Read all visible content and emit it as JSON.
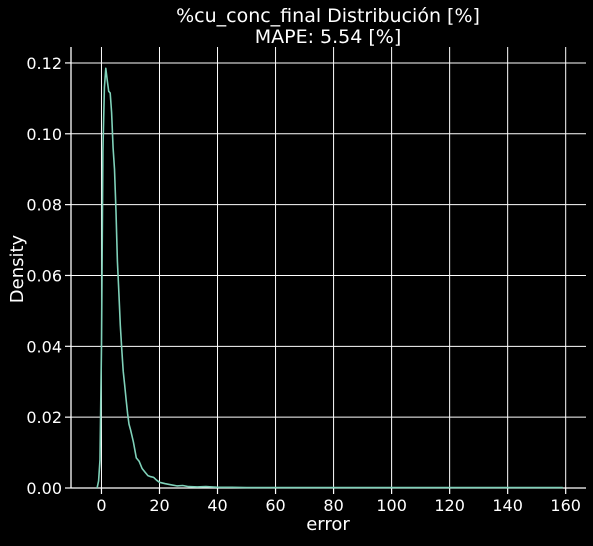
{
  "chart_data": {
    "type": "line",
    "title": "%cu_conc_final Distribución [%]",
    "subtitle": "MAPE: 5.54 [%]",
    "xlabel": "error",
    "ylabel": "Density",
    "xlim": [
      -10.5,
      167
    ],
    "ylim": [
      0,
      0.1245
    ],
    "xticks": [
      0,
      20,
      40,
      60,
      80,
      100,
      120,
      140,
      160
    ],
    "yticks": [
      0.0,
      0.02,
      0.04,
      0.06,
      0.08,
      0.1,
      0.12
    ],
    "xtick_labels": [
      "0",
      "20",
      "40",
      "60",
      "80",
      "100",
      "120",
      "140",
      "160"
    ],
    "ytick_labels": [
      "0.00",
      "0.02",
      "0.04",
      "0.06",
      "0.08",
      "0.10",
      "0.12"
    ],
    "grid": true,
    "background_color": "#000000",
    "text_color": "#ffffff",
    "grid_color": "#ffffff",
    "series": [
      {
        "color": "#7fd1b9",
        "x": [
          -1.5,
          -1.0,
          -0.5,
          0.0,
          0.5,
          1.0,
          1.5,
          2.0,
          2.5,
          3.0,
          3.5,
          4.0,
          4.5,
          5.0,
          5.5,
          6.0,
          6.5,
          7.0,
          7.5,
          8.0,
          8.5,
          9.0,
          9.5,
          10.0,
          11.0,
          12.0,
          13.0,
          14.0,
          15.0,
          16.0,
          17.0,
          18.0,
          19.0,
          20.0,
          22.0,
          24.0,
          26.0,
          28.0,
          30.0,
          33.0,
          36.0,
          40.0,
          45.0,
          50.0,
          60.0,
          80.0,
          100.0,
          120.0,
          140.0,
          159.0
        ],
        "values": [
          0.0,
          0.002,
          0.008,
          0.04,
          0.095,
          0.113,
          0.1185,
          0.115,
          0.112,
          0.1115,
          0.106,
          0.096,
          0.09,
          0.078,
          0.064,
          0.055,
          0.046,
          0.039,
          0.033,
          0.029,
          0.025,
          0.021,
          0.018,
          0.0165,
          0.013,
          0.0085,
          0.0075,
          0.0055,
          0.0045,
          0.0035,
          0.0032,
          0.003,
          0.0022,
          0.0016,
          0.0012,
          0.0009,
          0.0006,
          0.0007,
          0.0004,
          0.0003,
          0.0004,
          0.0002,
          0.0002,
          0.0001,
          0.0001,
          0.0001,
          0.0001,
          0.0001,
          0.0001,
          0.0001
        ]
      }
    ]
  }
}
